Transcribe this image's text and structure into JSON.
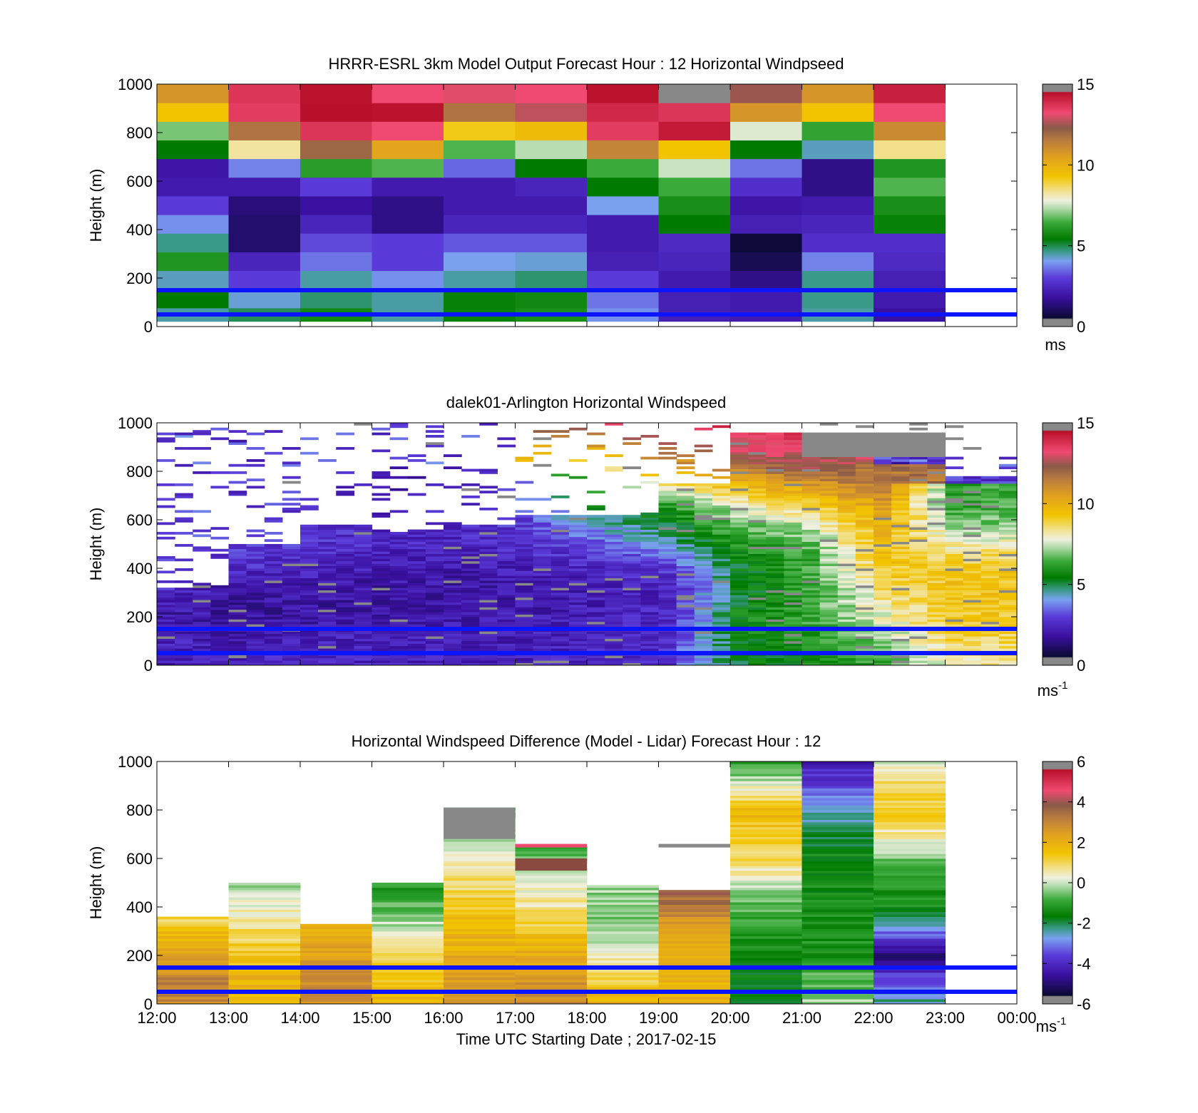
{
  "figure": {
    "xticks": [
      "12:00",
      "13:00",
      "14:00",
      "15:00",
      "16:00",
      "17:00",
      "18:00",
      "19:00",
      "20:00",
      "21:00",
      "22:00",
      "23:00",
      "00:00"
    ],
    "xlabel": "Time UTC  Starting Date ; 2017-02-15",
    "reference_line_color": "#0a14ff"
  },
  "chart_data": [
    {
      "type": "heatmap",
      "title": "HRRR-ESRL 3km Model Output   Forecast Hour : 12 Horizontal Windpseed",
      "ylabel": "Height (m)",
      "ylim": [
        0,
        1000
      ],
      "yticks": [
        "0",
        "200",
        "400",
        "600",
        "800",
        "1000"
      ],
      "x_hours": [
        12,
        13,
        14,
        15,
        16,
        17,
        18,
        19,
        20,
        21,
        22,
        23,
        24
      ],
      "colorbar": {
        "ticks": [
          "0",
          "5",
          "10",
          "15"
        ],
        "range": [
          0,
          15
        ],
        "unit": "ms",
        "unit_superscript": ""
      },
      "reference_heights_m": [
        50,
        150
      ],
      "grid": false
    },
    {
      "type": "heatmap",
      "title": "dalek01-Arlington  Horizontal Windspeed",
      "ylabel": "Height (m)",
      "ylim": [
        0,
        1000
      ],
      "yticks": [
        "0",
        "200",
        "400",
        "600",
        "800",
        "1000"
      ],
      "x_hours": [
        12,
        13,
        14,
        15,
        16,
        17,
        18,
        19,
        20,
        21,
        22,
        23,
        24
      ],
      "colorbar": {
        "ticks": [
          "0",
          "5",
          "10",
          "15"
        ],
        "range": [
          0,
          15
        ],
        "unit": "ms",
        "unit_superscript": "-1"
      },
      "reference_heights_m": [
        50,
        150
      ],
      "grid": false
    },
    {
      "type": "heatmap",
      "title": "Horizontal Windspeed Difference (Model - Lidar) Forecast Hour : 12",
      "ylabel": "Height (m)",
      "ylim": [
        0,
        1000
      ],
      "yticks": [
        "0",
        "200",
        "400",
        "600",
        "800",
        "1000"
      ],
      "x_hours": [
        12,
        13,
        14,
        15,
        16,
        17,
        18,
        19,
        20,
        21,
        22,
        23,
        24
      ],
      "colorbar": {
        "ticks": [
          "-6",
          "-4",
          "-2",
          "0",
          "2",
          "4",
          "6"
        ],
        "range": [
          -6,
          6
        ],
        "unit": "ms",
        "unit_superscript": "-1"
      },
      "reference_heights_m": [
        50,
        150
      ],
      "grid": false
    }
  ]
}
